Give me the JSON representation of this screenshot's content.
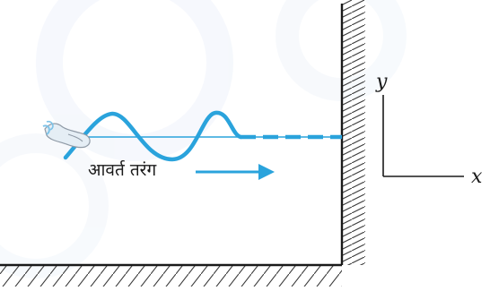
{
  "diagram": {
    "wave_label": "आवर्त तरंग",
    "axis_y": "y",
    "axis_x": "x",
    "colors": {
      "wave": "#2aa3dc",
      "line": "#1a1a1a",
      "hatch": "#3a3a3a",
      "watermark": "#e8eef8"
    }
  }
}
